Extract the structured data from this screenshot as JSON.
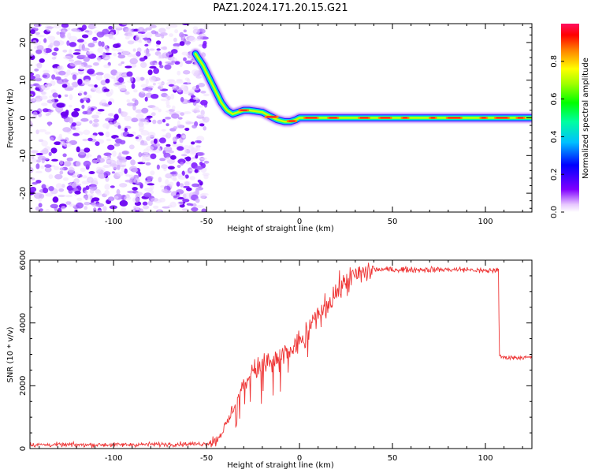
{
  "title": "PAZ1.2024.171.20.15.G21",
  "chart_data": [
    {
      "type": "heatmap",
      "xlabel": "Height of straight line (km)",
      "ylabel": "Frequency (Hz)",
      "xlim": [
        -145,
        125
      ],
      "ylim": [
        -25,
        25
      ],
      "xticks": [
        -100,
        -50,
        0,
        50,
        100
      ],
      "yticks": [
        -20,
        -10,
        0,
        10,
        20
      ],
      "noise_region": {
        "x_range": [
          -145,
          -50
        ],
        "y_range": [
          -25,
          25
        ]
      },
      "ridge": {
        "x": [
          -56,
          -52,
          -48,
          -45,
          -42,
          -39,
          -36,
          -33,
          -30,
          -27,
          -24,
          -20,
          -16,
          -12,
          -8,
          -5,
          -2,
          0,
          5,
          10,
          20,
          30,
          50,
          70,
          90,
          110,
          125
        ],
        "y": [
          17,
          14,
          10,
          7,
          4,
          2,
          1,
          1.5,
          2,
          2,
          1.8,
          1.5,
          0.5,
          -0.5,
          -1,
          -1,
          -0.5,
          0,
          0,
          0,
          0,
          0,
          0,
          0,
          0,
          0,
          0
        ]
      },
      "colorbar": {
        "label": "Normalized spectral amplitude",
        "ticks": [
          "0.0",
          "0.2",
          "0.4",
          "0.6",
          "0.8"
        ],
        "tick_values": [
          0.0,
          0.2,
          0.4,
          0.6,
          0.8
        ],
        "range": [
          0,
          1
        ],
        "colormap": "gist_rainbow_r"
      }
    },
    {
      "type": "line",
      "xlabel": "Height of straight line (km)",
      "ylabel": "SNR (10 * v/v)",
      "xlim": [
        -145,
        125
      ],
      "ylim": [
        0,
        6000
      ],
      "xticks": [
        -100,
        -50,
        0,
        50,
        100
      ],
      "yticks": [
        0,
        2000,
        4000,
        6000
      ],
      "color": "#ee3333",
      "series": [
        {
          "x": [
            -145,
            -100,
            -50,
            -45,
            -42,
            -38,
            -35,
            -30,
            -25,
            -20,
            -15,
            -10,
            -5,
            0,
            5,
            10,
            15,
            20,
            25,
            30,
            35,
            40,
            50,
            60,
            70,
            80,
            90,
            100,
            107,
            107.5,
            110,
            115,
            120,
            125
          ],
          "y": [
            120,
            120,
            150,
            250,
            500,
            900,
            1400,
            2000,
            2500,
            2600,
            2800,
            2900,
            3100,
            3400,
            3800,
            4200,
            4600,
            5000,
            5300,
            5500,
            5600,
            5700,
            5700,
            5700,
            5700,
            5700,
            5700,
            5650,
            5700,
            2950,
            2900,
            2900,
            2900,
            2900
          ]
        }
      ]
    }
  ]
}
